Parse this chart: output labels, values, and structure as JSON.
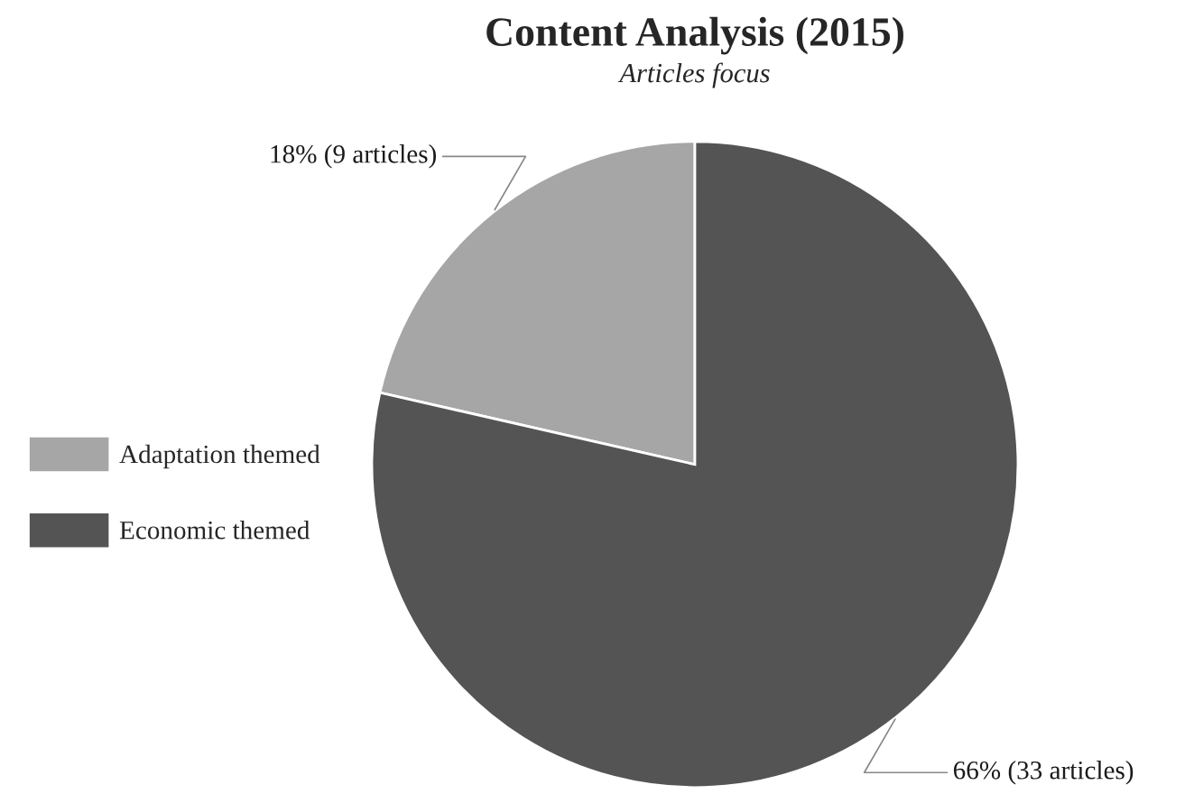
{
  "chart_data": {
    "type": "pie",
    "title": "Content Analysis (2015)",
    "subtitle": "Articles focus",
    "categories": [
      "Adaptation themed",
      "Economic themed"
    ],
    "values": [
      9,
      33
    ],
    "colors": [
      "#a6a6a6",
      "#545454"
    ],
    "value_labels": [
      "18% (9 articles)",
      "66% (33 articles)"
    ],
    "legend": "left"
  }
}
